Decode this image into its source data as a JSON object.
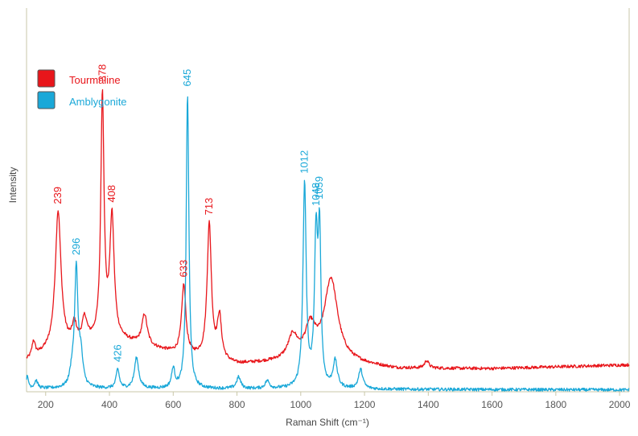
{
  "chart_data": {
    "type": "line",
    "xlabel": "Raman Shift (cm⁻¹)",
    "ylabel": "Intensity",
    "xlim": [
      140,
      2030
    ],
    "ylim": [
      0,
      1
    ],
    "x_ticks": [
      200,
      400,
      600,
      800,
      1000,
      1200,
      1400,
      1600,
      1800,
      2000
    ],
    "x_tick_labels": [
      "200",
      "400",
      "600",
      "800",
      "1000",
      "1200",
      "1400",
      "1600",
      "1800",
      "2000"
    ],
    "grid": false,
    "legend_position": "top-left",
    "series": [
      {
        "name": "Tourmaline",
        "color": "#e8161b",
        "baseline": [
          [
            140,
            0.08
          ],
          [
            200,
            0.1
          ],
          [
            400,
            0.14
          ],
          [
            600,
            0.1
          ],
          [
            800,
            0.07
          ],
          [
            1000,
            0.08
          ],
          [
            1100,
            0.08
          ],
          [
            1300,
            0.06
          ],
          [
            1600,
            0.06
          ],
          [
            2030,
            0.07
          ]
        ],
        "peaks": [
          {
            "center": 162,
            "height": 0.04,
            "width": 6
          },
          {
            "center": 239,
            "height": 0.36,
            "width": 11
          },
          {
            "center": 290,
            "height": 0.05,
            "width": 8
          },
          {
            "center": 322,
            "height": 0.06,
            "width": 9
          },
          {
            "center": 378,
            "height": 0.63,
            "width": 6
          },
          {
            "center": 408,
            "height": 0.31,
            "width": 8
          },
          {
            "center": 510,
            "height": 0.08,
            "width": 10
          },
          {
            "center": 633,
            "height": 0.18,
            "width": 8
          },
          {
            "center": 713,
            "height": 0.35,
            "width": 8
          },
          {
            "center": 745,
            "height": 0.11,
            "width": 8
          },
          {
            "center": 975,
            "height": 0.06,
            "width": 18
          },
          {
            "center": 1030,
            "height": 0.08,
            "width": 20
          },
          {
            "center": 1095,
            "height": 0.21,
            "width": 25
          },
          {
            "center": 1395,
            "height": 0.02,
            "width": 8
          }
        ],
        "peak_labels": [
          {
            "x": 239,
            "text": "239"
          },
          {
            "x": 378,
            "text": "378"
          },
          {
            "x": 408,
            "text": "408"
          },
          {
            "x": 633,
            "text": "633"
          },
          {
            "x": 713,
            "text": "713"
          }
        ]
      },
      {
        "name": "Amblygonite",
        "color": "#1aa8d8",
        "baseline": [
          [
            140,
            0.008
          ],
          [
            2030,
            0.005
          ]
        ],
        "peaks": [
          {
            "center": 142,
            "height": 0.03,
            "width": 5
          },
          {
            "center": 170,
            "height": 0.02,
            "width": 6
          },
          {
            "center": 283,
            "height": 0.04,
            "width": 8
          },
          {
            "center": 296,
            "height": 0.3,
            "width": 6
          },
          {
            "center": 310,
            "height": 0.08,
            "width": 8
          },
          {
            "center": 426,
            "height": 0.05,
            "width": 6
          },
          {
            "center": 485,
            "height": 0.08,
            "width": 8
          },
          {
            "center": 600,
            "height": 0.05,
            "width": 6
          },
          {
            "center": 645,
            "height": 0.77,
            "width": 5
          },
          {
            "center": 805,
            "height": 0.03,
            "width": 8
          },
          {
            "center": 895,
            "height": 0.02,
            "width": 8
          },
          {
            "center": 1012,
            "height": 0.53,
            "width": 6
          },
          {
            "center": 1048,
            "height": 0.38,
            "width": 6
          },
          {
            "center": 1059,
            "height": 0.38,
            "width": 5
          },
          {
            "center": 1108,
            "height": 0.07,
            "width": 8
          },
          {
            "center": 1188,
            "height": 0.05,
            "width": 8
          }
        ],
        "peak_labels": [
          {
            "x": 296,
            "text": "296"
          },
          {
            "x": 426,
            "text": "426"
          },
          {
            "x": 645,
            "text": "645"
          },
          {
            "x": 1012,
            "text": "1012"
          },
          {
            "x": 1048,
            "text": "1048"
          },
          {
            "x": 1059,
            "text": "1059"
          }
        ]
      }
    ]
  }
}
